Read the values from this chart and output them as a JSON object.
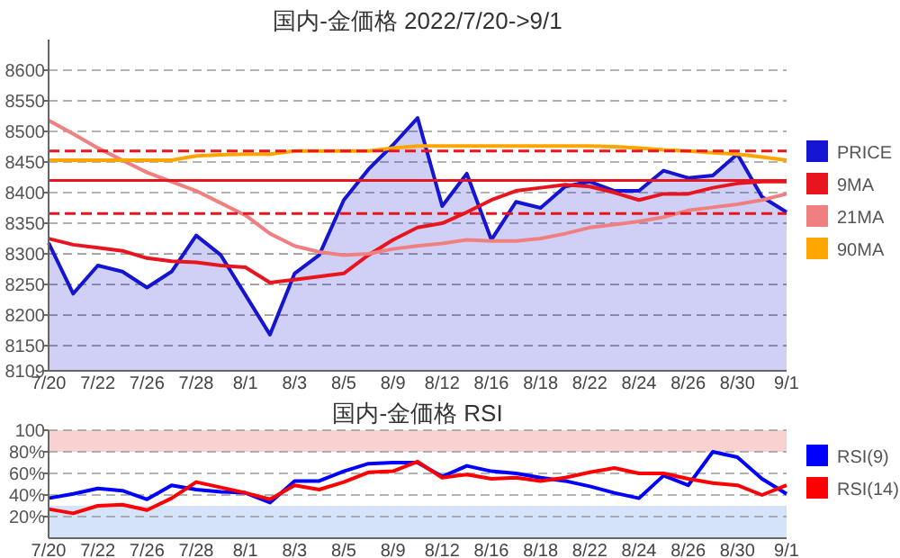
{
  "chart_data": [
    {
      "type": "line",
      "title": "国内-金価格 2022/7/20->9/1",
      "categories": [
        "7/20",
        null,
        "7/22",
        null,
        "7/26",
        null,
        "7/28",
        null,
        "8/1",
        null,
        "8/3",
        null,
        "8/5",
        null,
        "8/9",
        null,
        "8/12",
        null,
        "8/16",
        null,
        "8/18",
        null,
        "8/22",
        null,
        "8/24",
        null,
        "8/26",
        null,
        "8/30",
        null,
        "9/1"
      ],
      "series": [
        {
          "name": "PRICE",
          "type": "area",
          "color": "#1414d2",
          "values": [
            8318,
            8235,
            8281,
            8271,
            8245,
            8271,
            8330,
            8298,
            8233,
            8168,
            8268,
            8298,
            8388,
            8438,
            8478,
            8522,
            8378,
            8431,
            8323,
            8385,
            8375,
            8410,
            8418,
            8403,
            8403,
            8436,
            8424,
            8428,
            8463,
            8393,
            8368
          ]
        },
        {
          "name": "9MA",
          "color": "#e8141e",
          "values": [
            8325,
            8315,
            8310,
            8305,
            8293,
            8288,
            8286,
            8281,
            8278,
            8253,
            8258,
            8263,
            8268,
            8298,
            8323,
            8343,
            8350,
            8368,
            8388,
            8403,
            8408,
            8413,
            8410,
            8400,
            8388,
            8398,
            8398,
            8408,
            8415,
            8418,
            8418
          ]
        },
        {
          "name": "21MA",
          "color": "#f08080",
          "values": [
            8518,
            8496,
            8473,
            8453,
            8433,
            8418,
            8403,
            8383,
            8363,
            8333,
            8313,
            8303,
            8298,
            8300,
            8308,
            8313,
            8317,
            8323,
            8321,
            8321,
            8325,
            8333,
            8343,
            8348,
            8353,
            8360,
            8371,
            8376,
            8381,
            8388,
            8398
          ]
        },
        {
          "name": "90MA",
          "color": "#ffa500",
          "values": [
            8453,
            8453,
            8453,
            8453,
            8453,
            8453,
            8460,
            8462,
            8463,
            8463,
            8468,
            8468,
            8468,
            8468,
            8473,
            8476,
            8476,
            8476,
            8476,
            8476,
            8476,
            8476,
            8476,
            8475,
            8473,
            8470,
            8468,
            8465,
            8463,
            8458,
            8453
          ]
        }
      ],
      "ylim": [
        8109,
        8650
      ],
      "yticks": [
        8109,
        8150,
        8200,
        8250,
        8300,
        8350,
        8400,
        8450,
        8500,
        8550,
        8600
      ],
      "ref_lines": [
        {
          "axis": "y",
          "value": 8468,
          "color": "#e8141e",
          "line_style": "dashed"
        },
        {
          "axis": "y",
          "value": 8420,
          "color": "#e8141e",
          "line_style": "solid"
        },
        {
          "axis": "y",
          "value": 8366,
          "color": "#e8141e",
          "line_style": "dashed"
        }
      ],
      "grid": "y",
      "legend": "right"
    },
    {
      "type": "line",
      "title": "国内-金価格 RSI",
      "categories": [
        "7/20",
        null,
        "7/22",
        null,
        "7/26",
        null,
        "7/28",
        null,
        "8/1",
        null,
        "8/3",
        null,
        "8/5",
        null,
        "8/9",
        null,
        "8/12",
        null,
        "8/16",
        null,
        "8/18",
        null,
        "8/22",
        null,
        "8/24",
        null,
        "8/26",
        null,
        "8/30",
        null,
        "9/1"
      ],
      "series": [
        {
          "name": "RSI(9)",
          "color": "#0000ff",
          "values": [
            37,
            41,
            46,
            44,
            36,
            49,
            45,
            43,
            42,
            33,
            53,
            53,
            62,
            69,
            70,
            70,
            57,
            67,
            62,
            60,
            56,
            53,
            48,
            42,
            37,
            58,
            49,
            80,
            75,
            55,
            41
          ]
        },
        {
          "name": "RSI(14)",
          "color": "#ff0000",
          "values": [
            27,
            23,
            30,
            31,
            26,
            37,
            52,
            47,
            42,
            36,
            49,
            45,
            52,
            61,
            62,
            71,
            56,
            59,
            55,
            56,
            53,
            56,
            61,
            65,
            60,
            60,
            55,
            51,
            49,
            40,
            49
          ]
        }
      ],
      "ylim": [
        0,
        100
      ],
      "yticks": [
        100,
        {
          "value": 80,
          "label": "80%"
        },
        {
          "value": 60,
          "label": "60%"
        },
        {
          "value": 40,
          "label": "40%"
        },
        {
          "value": 20,
          "label": "20%"
        }
      ],
      "bands": [
        {
          "axis": "y",
          "from": 80,
          "to": 100,
          "color": "#f8cccc"
        },
        {
          "axis": "y",
          "from": 0,
          "to": 30,
          "color": "#cfe0f8"
        }
      ],
      "grid": "y",
      "legend": "right"
    }
  ]
}
